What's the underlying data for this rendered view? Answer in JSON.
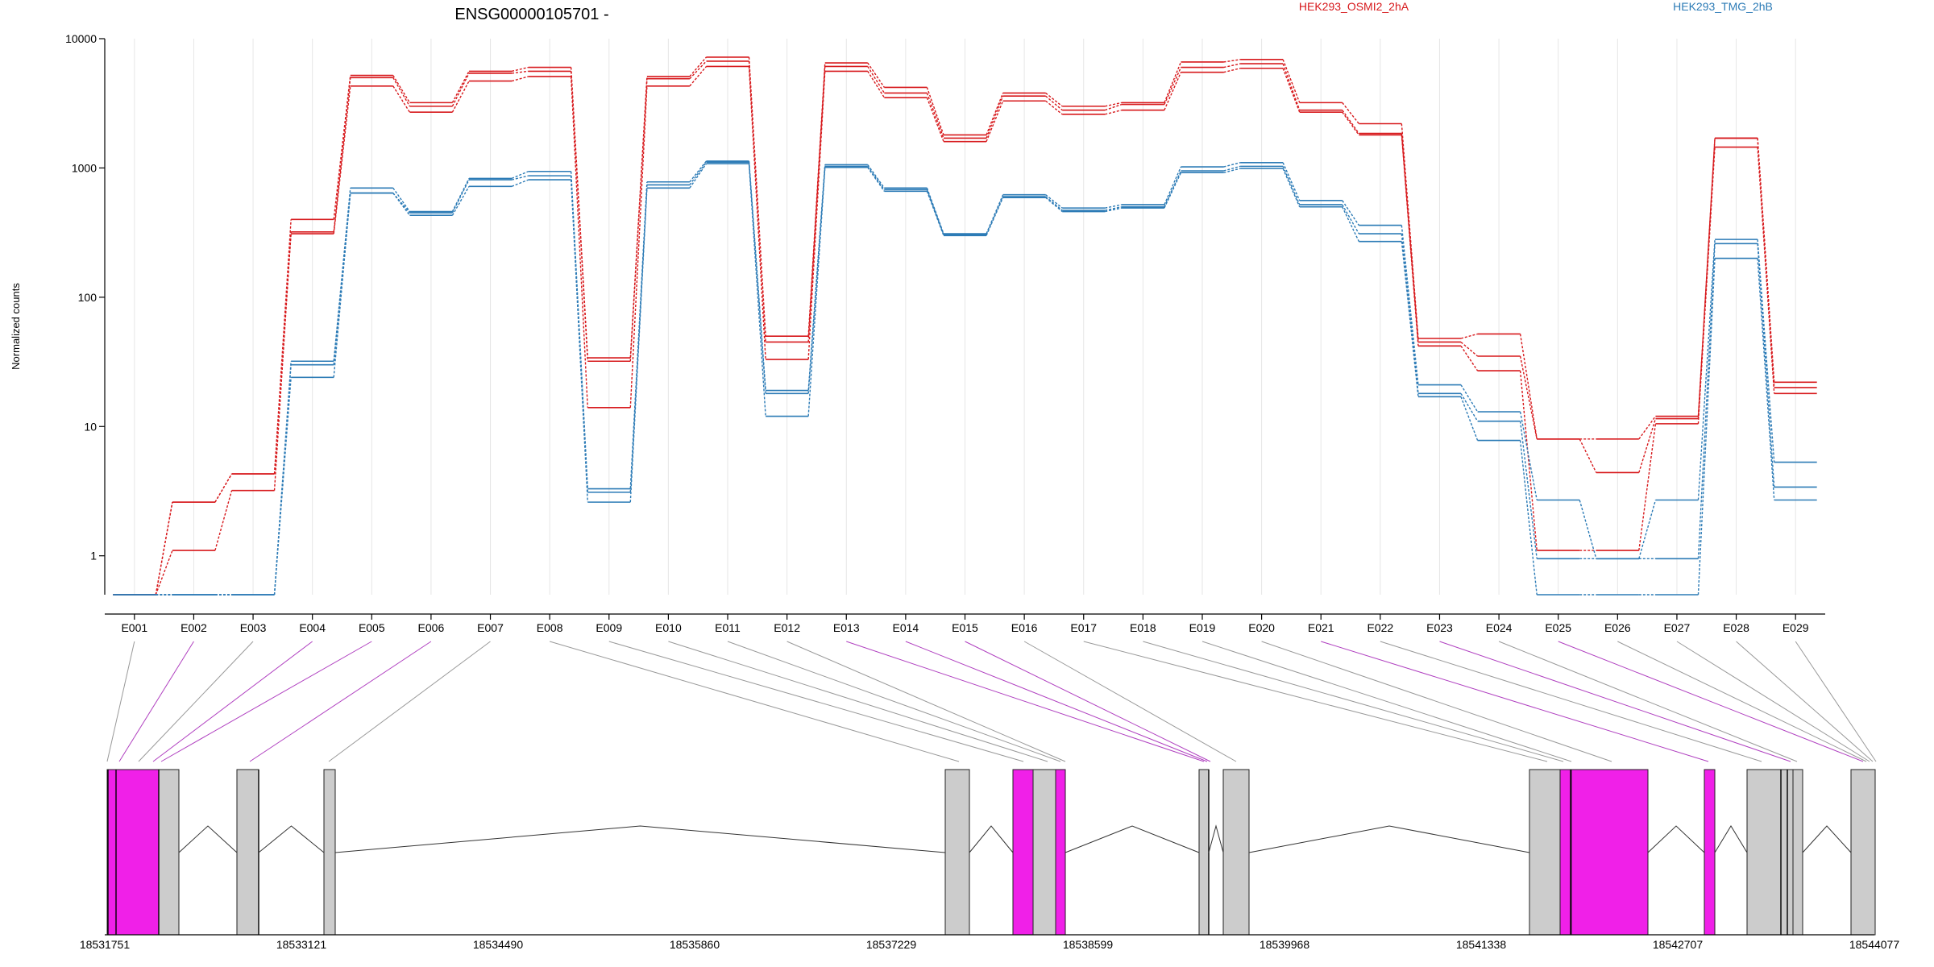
{
  "chart_data": {
    "type": "line",
    "title": "ENSG00000105701 -",
    "ylabel": "Normalized counts",
    "yscale": "log",
    "y_ticks": [
      1,
      10,
      100,
      1000,
      10000
    ],
    "y_tick_labels": [
      "1",
      "10",
      "100",
      "1000",
      "10000"
    ],
    "ylim": [
      0.5,
      10000
    ],
    "categories": [
      "E001",
      "E002",
      "E003",
      "E004",
      "E005",
      "E006",
      "E007",
      "E008",
      "E009",
      "E010",
      "E011",
      "E012",
      "E013",
      "E014",
      "E015",
      "E016",
      "E017",
      "E018",
      "E019",
      "E020",
      "E021",
      "E022",
      "E023",
      "E024",
      "E025",
      "E026",
      "E027",
      "E028",
      "E029"
    ],
    "legend": [
      {
        "name": "HEK293_OSMI2_2hA",
        "color": "#d7191c"
      },
      {
        "name": "HEK293_TMG_2hB",
        "color": "#2c7bb6"
      }
    ],
    "series": [
      {
        "name": "HEK293_OSMI2_2hA",
        "group": "HEK293_OSMI2_2hA",
        "color": "#d7191c",
        "values": [
          0.5,
          2.6,
          4.3,
          400,
          5200,
          3200,
          5600,
          6000,
          34,
          5100,
          7200,
          50,
          6500,
          4200,
          1800,
          3800,
          3000,
          3200,
          6600,
          6900,
          3200,
          2200,
          48,
          52,
          8,
          8,
          12,
          1700,
          22
        ]
      },
      {
        "name": "",
        "group": "HEK293_OSMI2_2hA",
        "color": "#d7191c",
        "values": [
          0.5,
          1.1,
          3.2,
          320,
          5000,
          3000,
          5400,
          5600,
          32,
          4900,
          6700,
          45,
          6100,
          3800,
          1700,
          3600,
          2800,
          3100,
          6000,
          6400,
          2800,
          1850,
          45,
          35,
          8,
          4.4,
          11.5,
          1700,
          20
        ]
      },
      {
        "name": "",
        "group": "HEK293_OSMI2_2hA",
        "color": "#d7191c",
        "values": [
          0.5,
          2.6,
          4.3,
          310,
          4300,
          2700,
          4700,
          5100,
          14,
          4300,
          6100,
          33,
          5600,
          3500,
          1600,
          3300,
          2600,
          2800,
          5500,
          5900,
          2700,
          1800,
          42,
          27,
          1.1,
          1.1,
          10.5,
          1450,
          18
        ]
      },
      {
        "name": "",
        "group": "HEK293_TMG_2hB",
        "color": "#2c7bb6",
        "values": [
          0.5,
          0.5,
          0.5,
          32,
          700,
          460,
          830,
          940,
          3.3,
          780,
          1130,
          19,
          1060,
          700,
          310,
          620,
          490,
          520,
          1020,
          1100,
          560,
          360,
          21,
          13,
          2.7,
          0.95,
          2.7,
          280,
          5.3
        ]
      },
      {
        "name": "",
        "group": "HEK293_TMG_2hB",
        "color": "#2c7bb6",
        "values": [
          0.5,
          0.5,
          0.5,
          30,
          640,
          450,
          810,
          870,
          3.1,
          740,
          1110,
          18,
          1030,
          680,
          305,
          600,
          470,
          500,
          950,
          1030,
          520,
          310,
          18,
          11,
          0.95,
          0.95,
          0.95,
          260,
          3.4
        ]
      },
      {
        "name": "",
        "group": "HEK293_TMG_2hB",
        "color": "#2c7bb6",
        "values": [
          0.5,
          0.5,
          0.5,
          24,
          640,
          430,
          720,
          810,
          2.6,
          700,
          1080,
          12,
          1010,
          660,
          300,
          590,
          460,
          490,
          920,
          990,
          500,
          270,
          17,
          7.8,
          0.5,
          0.5,
          0.5,
          200,
          2.7
        ]
      }
    ],
    "genome": {
      "axis_labels": [
        "18531751",
        "18533121",
        "18534490",
        "18535860",
        "18537229",
        "18538599",
        "18539968",
        "18541338",
        "18542707",
        "18544077"
      ],
      "exon_color": "#cccccc",
      "highlight_color": "#f020e8",
      "connector_color": "#999999",
      "highlight_connector_color": "#b040c0",
      "highlighted_exons": [
        "E002",
        "E004",
        "E005",
        "E006",
        "E013",
        "E014",
        "E015",
        "E021",
        "E023",
        "E025"
      ]
    }
  }
}
